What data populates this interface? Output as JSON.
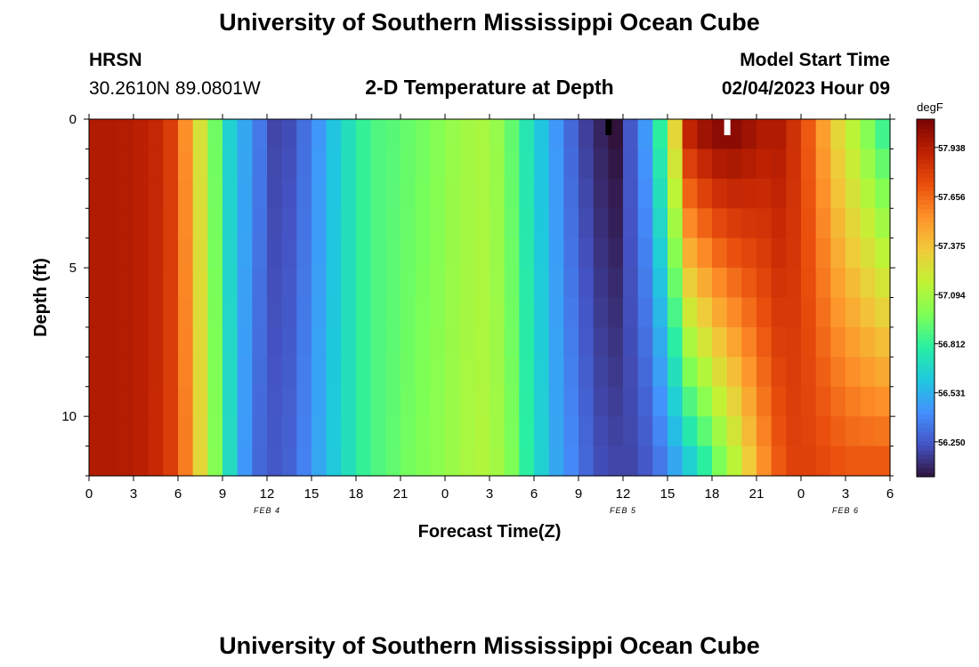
{
  "header": {
    "title": "University of Southern Mississippi Ocean Cube",
    "station": "HRSN",
    "coords": "30.2610N  89.0801W",
    "plot_title": "2-D Temperature at Depth",
    "model_start_label": "Model Start Time",
    "model_start_value": "02/04/2023 Hour 09"
  },
  "footer": {
    "title": "University of Southern Mississippi Ocean Cube"
  },
  "chart_data": {
    "type": "heatmap",
    "title": "2-D Temperature at Depth",
    "xlabel": "Forecast Time(Z)",
    "ylabel": "Depth (ft)",
    "x_tick_labels": [
      "0",
      "3",
      "6",
      "9",
      "12",
      "15",
      "18",
      "21",
      "0",
      "3",
      "6",
      "9",
      "12",
      "15",
      "18",
      "21",
      "0",
      "3",
      "6"
    ],
    "x_range_hours": [
      0,
      54
    ],
    "date_labels": [
      {
        "text": "FEB 4",
        "hour": 12
      },
      {
        "text": "FEB 5",
        "hour": 36
      },
      {
        "text": "FEB 6",
        "hour": 51
      }
    ],
    "y_ticks": [
      0,
      5,
      10
    ],
    "y_range": [
      0,
      12
    ],
    "y_inverted": true,
    "colorbar": {
      "unit": "degF",
      "ticks": [
        "57.938",
        "57.656",
        "57.375",
        "57.094",
        "56.812",
        "56.531",
        "56.250"
      ],
      "min": 56.05,
      "max": 58.1,
      "colormap": [
        "#30123b",
        "#4454c4",
        "#4490fe",
        "#1fc8de",
        "#29efa2",
        "#7dff56",
        "#c1f334",
        "#f1ca3a",
        "#fe922a",
        "#ea4f0d",
        "#be2102",
        "#7a0403"
      ]
    },
    "time_step_hours": 1,
    "depth_levels": 12,
    "surface_series_degF": [
      57.95,
      57.95,
      57.94,
      57.92,
      57.89,
      57.8,
      57.55,
      57.25,
      56.95,
      56.65,
      56.5,
      56.35,
      56.2,
      56.22,
      56.32,
      56.45,
      56.6,
      56.72,
      56.82,
      56.88,
      56.9,
      56.93,
      56.96,
      57.0,
      57.05,
      57.08,
      57.1,
      57.05,
      56.92,
      56.75,
      56.6,
      56.45,
      56.3,
      56.18,
      56.1,
      56.05,
      56.25,
      56.45,
      56.8,
      57.3,
      57.9,
      58.0,
      58.05,
      58.05,
      58.0,
      57.95,
      57.95,
      57.85,
      57.7,
      57.5,
      57.3,
      57.15,
      57.0,
      56.85
    ],
    "bottom_series_degF": [
      57.95,
      57.95,
      57.94,
      57.92,
      57.88,
      57.8,
      57.6,
      57.3,
      57.0,
      56.7,
      56.45,
      56.3,
      56.25,
      56.28,
      56.38,
      56.5,
      56.62,
      56.72,
      56.82,
      56.88,
      56.92,
      56.96,
      56.99,
      57.02,
      57.06,
      57.1,
      57.12,
      57.08,
      56.98,
      56.8,
      56.65,
      56.5,
      56.4,
      56.3,
      56.22,
      56.2,
      56.2,
      56.25,
      56.35,
      56.5,
      56.65,
      56.8,
      56.98,
      57.15,
      57.35,
      57.55,
      57.7,
      57.78,
      57.78,
      57.75,
      57.72,
      57.7,
      57.7,
      57.7
    ],
    "notes_mark": [
      {
        "hour": 35,
        "depth": 0.5,
        "color": "#000000"
      },
      {
        "hour": 43,
        "depth": 0.5,
        "color": "#ffffff"
      }
    ]
  }
}
